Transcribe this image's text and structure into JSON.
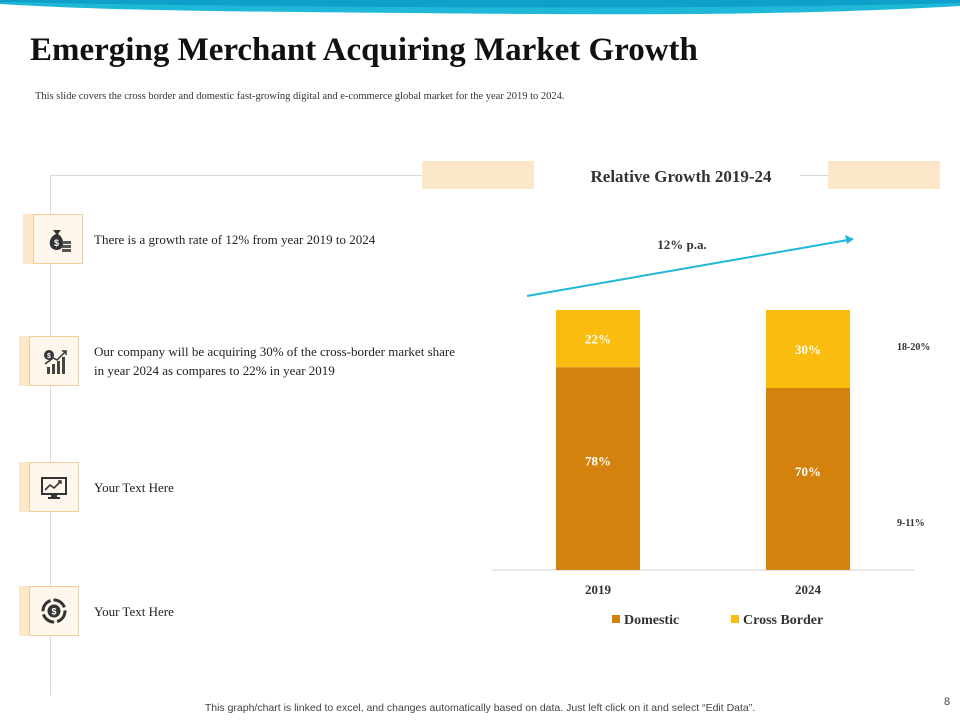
{
  "title": "Emerging Merchant Acquiring Market Growth",
  "subtitle": "This slide covers  the cross  border and domestic fast-growing digital and e-commerce  global market for the year  2019  to 2024.",
  "items": [
    {
      "icon": "money-bag-icon",
      "text": "There is  a growth rate of 12% from year 2019 to 2024"
    },
    {
      "icon": "growth-chart-icon",
      "text": "Our company will be acquiring 30% of the cross-border market share in year 2024 as compares to 22% in year 2019"
    },
    {
      "icon": "monitor-chart-icon",
      "text": "Your Text Here"
    },
    {
      "icon": "dollar-cycle-icon",
      "text": "Your Text Here"
    }
  ],
  "chart_data": {
    "type": "bar",
    "stacked": true,
    "title": "Relative Growth  2019-24",
    "categories": [
      "2019",
      "2024"
    ],
    "series": [
      {
        "name": "Domestic",
        "values": [
          78,
          70
        ],
        "labels": [
          "78%",
          "70%"
        ],
        "color": "#d4820e"
      },
      {
        "name": "Cross Border",
        "values": [
          22,
          30
        ],
        "labels": [
          "22%",
          "30%"
        ],
        "color": "#fbbc10"
      }
    ],
    "ylim": [
      0,
      100
    ],
    "legend_position": "bottom",
    "annotations": {
      "growth_arrow": "12% p.a.",
      "cross_border_growth": "18-20%",
      "domestic_growth": "9-11%"
    }
  },
  "colors": {
    "accent_blue": "#1fb8d8",
    "panel_tint": "#fde7c9",
    "domestic": "#d4820e",
    "cross_border": "#fbbc10"
  },
  "footer": "This graph/chart is linked to excel,  and changes automatically based on data. Just left click on it and select “Edit Data”.",
  "page_number": "8"
}
